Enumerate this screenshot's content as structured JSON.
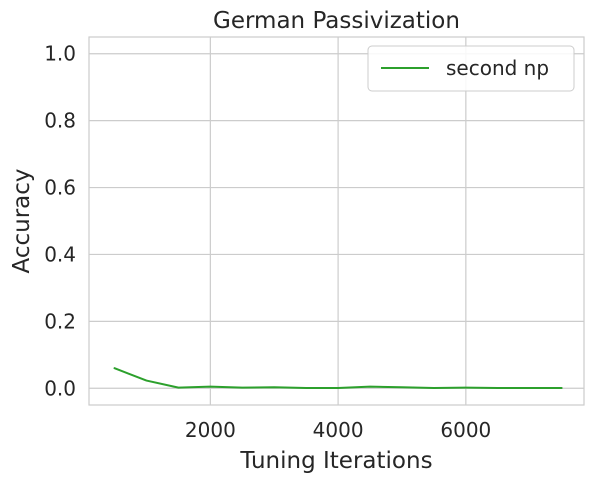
{
  "chart_data": {
    "type": "line",
    "title": "German Passivization",
    "xlabel": "Tuning Iterations",
    "ylabel": "Accuracy",
    "xlim": [
      100,
      7850
    ],
    "ylim": [
      -0.05,
      1.05
    ],
    "xticks": [
      2000,
      4000,
      6000
    ],
    "xtick_labels": [
      "2000",
      "4000",
      "6000"
    ],
    "yticks": [
      0.0,
      0.2,
      0.4,
      0.6,
      0.8,
      1.0
    ],
    "ytick_labels": [
      "0.0",
      "0.2",
      "0.4",
      "0.6",
      "0.8",
      "1.0"
    ],
    "grid": true,
    "legend_position": "top-right",
    "series": [
      {
        "name": "second np",
        "color": "#2ca02c",
        "x": [
          500,
          1000,
          1500,
          2000,
          2500,
          3000,
          3500,
          4000,
          4500,
          5000,
          5500,
          6000,
          6500,
          7000,
          7500
        ],
        "y": [
          0.06,
          0.023,
          0.002,
          0.005,
          0.002,
          0.003,
          0.001,
          0.001,
          0.005,
          0.003,
          0.001,
          0.002,
          0.001,
          0.001,
          0.001
        ]
      }
    ]
  }
}
